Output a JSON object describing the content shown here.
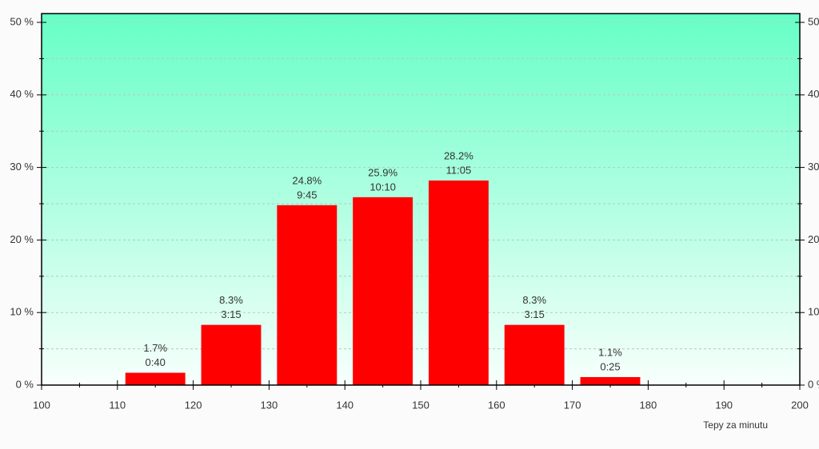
{
  "chart_data": {
    "type": "histogram",
    "xlabel": "Tepy za minutu",
    "bins": [
      110,
      120,
      130,
      140,
      150,
      160,
      170,
      180
    ],
    "values": [
      1.7,
      8.3,
      24.8,
      25.9,
      28.2,
      8.3,
      1.1
    ],
    "value_labels": [
      "1.7%",
      "8.3%",
      "24.8%",
      "25.9%",
      "28.2%",
      "8.3%",
      "1.1%"
    ],
    "durations": [
      "0:40",
      "3:15",
      "9:45",
      "10:10",
      "11:05",
      "3:15",
      "0:25"
    ],
    "color": "#ff0000",
    "xlim": [
      100,
      200
    ],
    "xticks": [
      100,
      110,
      120,
      130,
      140,
      150,
      160,
      170,
      180,
      190,
      200
    ],
    "xminorticks": [
      105,
      115,
      125,
      135,
      145,
      155,
      165,
      175,
      185,
      195
    ],
    "ylim": [
      0,
      50
    ],
    "yticks": [
      {
        "value": 0,
        "label": "0 %"
      },
      {
        "value": 10,
        "label": "10 %"
      },
      {
        "value": 20,
        "label": "20 %"
      },
      {
        "value": 30,
        "label": "30 %"
      },
      {
        "value": 40,
        "label": "40 %"
      },
      {
        "value": 50,
        "label": "50 %"
      }
    ],
    "yminorticks": [
      5,
      15,
      25,
      35,
      45
    ],
    "grid": true
  }
}
